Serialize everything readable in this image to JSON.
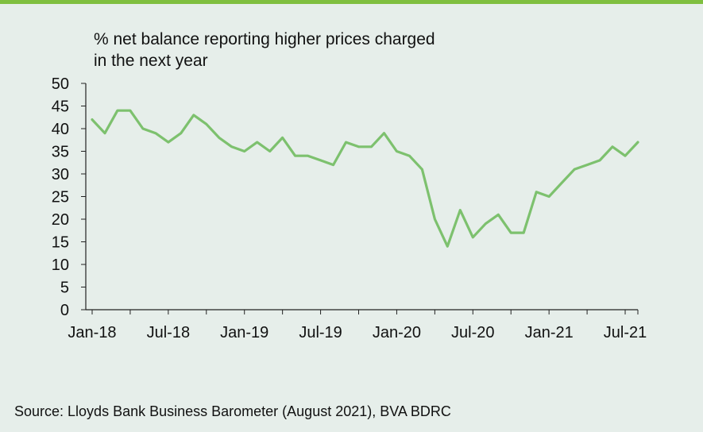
{
  "chart_data": {
    "type": "line",
    "ylabel": "% net balance reporting higher prices charged in the next year",
    "ylim": [
      0,
      50
    ],
    "yticks": [
      0,
      5,
      10,
      15,
      20,
      25,
      30,
      35,
      40,
      45,
      50
    ],
    "xtick_labels": [
      "Jan-18",
      "Jul-18",
      "Jan-19",
      "Jul-19",
      "Jan-20",
      "Jul-20",
      "Jan-21",
      "Jul-21"
    ],
    "grid": false,
    "line_color": "#7dc16e",
    "series": [
      {
        "x": [
          "2018-01",
          "2018-02",
          "2018-03",
          "2018-04",
          "2018-05",
          "2018-06",
          "2018-07",
          "2018-08",
          "2018-09",
          "2018-10",
          "2018-11",
          "2018-12",
          "2019-01",
          "2019-02",
          "2019-03",
          "2019-04",
          "2019-05",
          "2019-06",
          "2019-07",
          "2019-08",
          "2019-09",
          "2019-10",
          "2019-11",
          "2019-12",
          "2020-01",
          "2020-02",
          "2020-03",
          "2020-04",
          "2020-05",
          "2020-06",
          "2020-07",
          "2020-08",
          "2020-09",
          "2020-10",
          "2020-11",
          "2020-12",
          "2021-01",
          "2021-02",
          "2021-03",
          "2021-04",
          "2021-05",
          "2021-06",
          "2021-07",
          "2021-08"
        ],
        "values": [
          42,
          39,
          44,
          44,
          40,
          39,
          37,
          39,
          43,
          41,
          38,
          36,
          35,
          37,
          35,
          38,
          34,
          34,
          33,
          32,
          37,
          36,
          36,
          39,
          35,
          34,
          31,
          20,
          14,
          22,
          16,
          19,
          21,
          17,
          17,
          26,
          25,
          28,
          31,
          32,
          33,
          36,
          34,
          37
        ]
      }
    ]
  },
  "source": "Source: Lloyds Bank Business Barometer (August 2021), BVA BDRC",
  "ytitle_line1": "% net balance reporting higher prices charged",
  "ytitle_line2": "in the next year"
}
